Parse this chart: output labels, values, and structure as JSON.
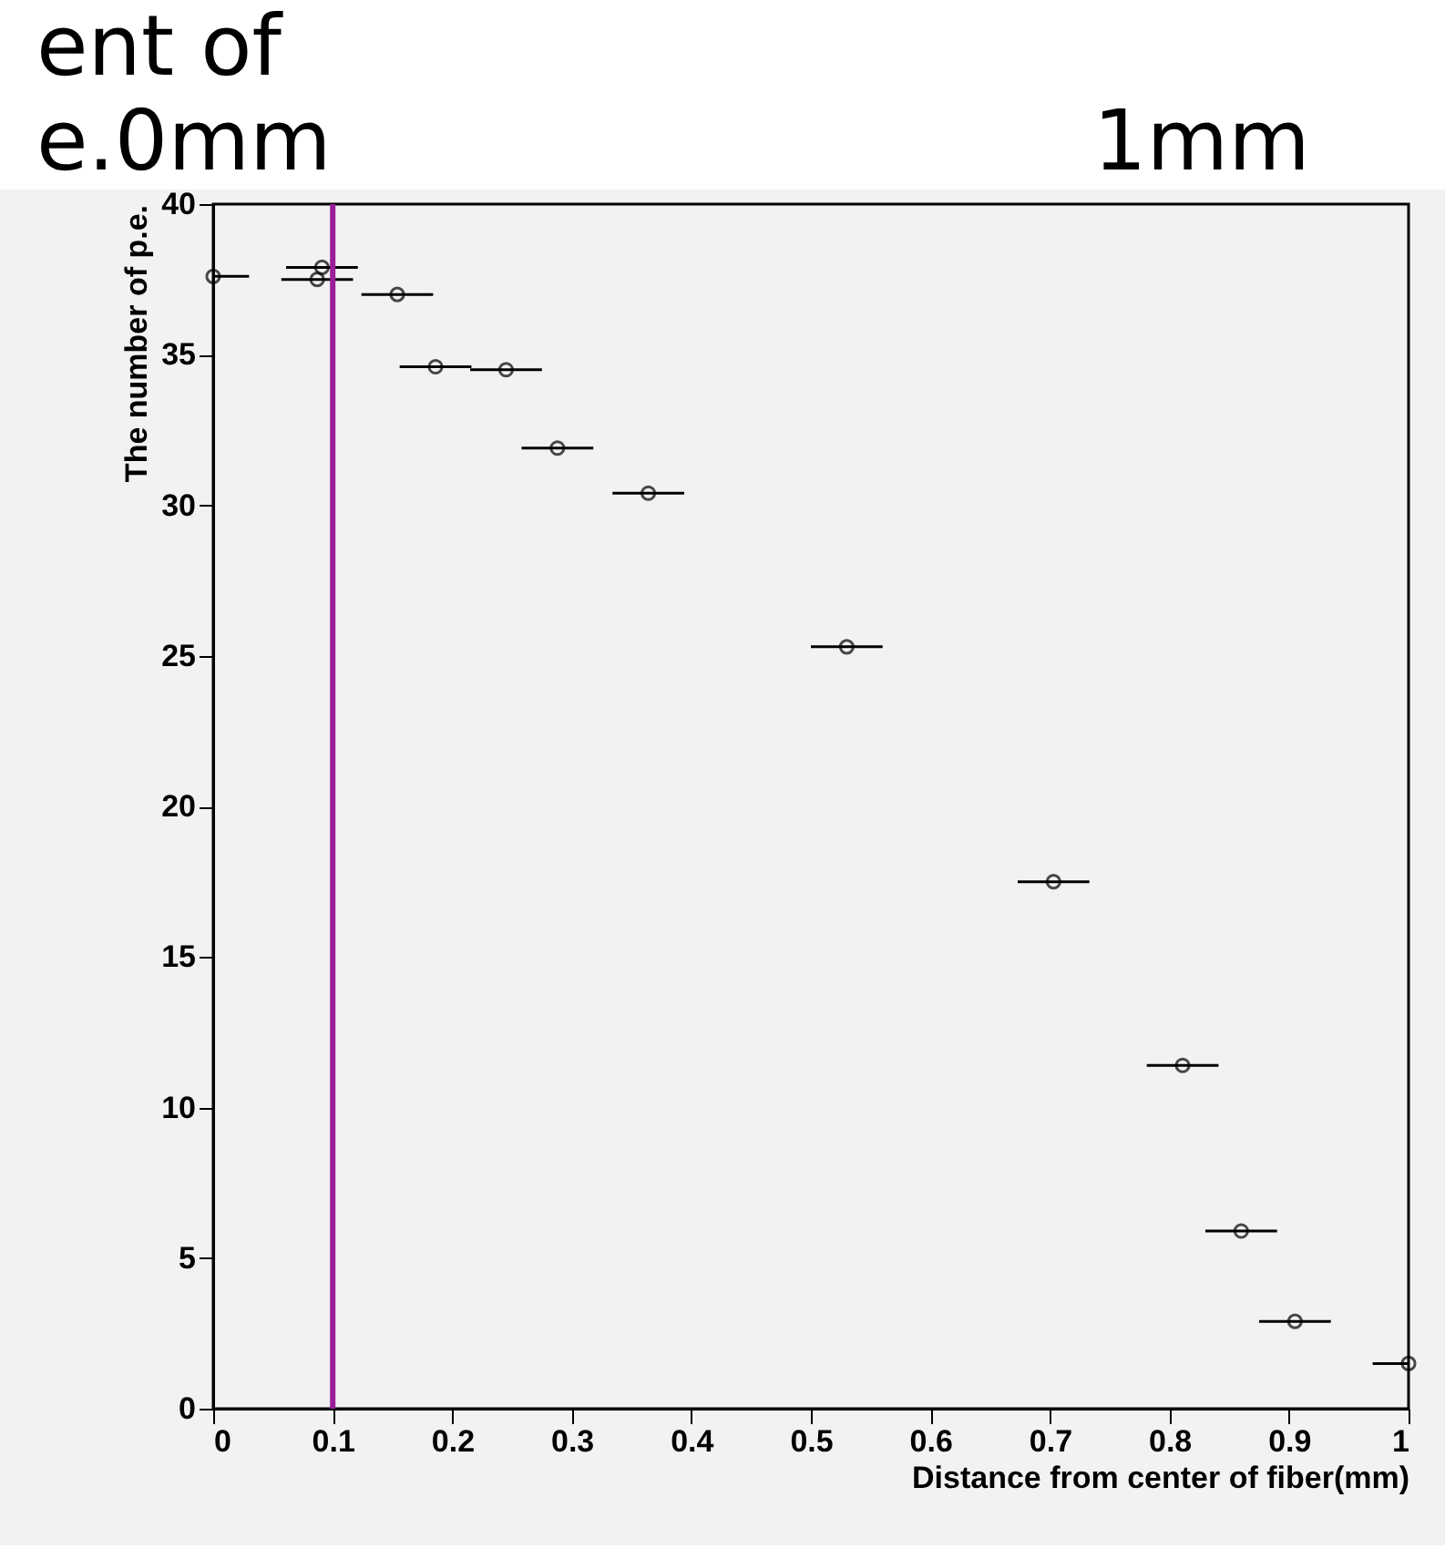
{
  "chart_data": {
    "type": "scatter",
    "xlabel": "Distance from center of fiber(mm)",
    "ylabel": "The number of p.e.",
    "annotations": [
      "ent of",
      "e.0mm",
      "1mm"
    ],
    "x": [
      0,
      0.091,
      0.087,
      0.154,
      0.186,
      0.245,
      0.288,
      0.364,
      0.53,
      0.703,
      0.811,
      0.86,
      0.905,
      1.0
    ],
    "series": [
      {
        "color": "#000000",
        "values": [
          37.6,
          37.9,
          37.5,
          37.0,
          34.6,
          34.5,
          31.9,
          30.4,
          25.3,
          17.5,
          11.4,
          5.9,
          2.9,
          1.5
        ],
        "xerrors": [
          [
            0,
            0.03
          ],
          0.03,
          0.03,
          0.03,
          0.03,
          0.03,
          0.03,
          0.03,
          0.03,
          0.03,
          0.03,
          0.03,
          0.03,
          [
            0.97,
            1
          ]
        ]
      }
    ],
    "xlim": [
      0,
      1
    ],
    "xticks": [
      0,
      0.1,
      0.2,
      0.3,
      0.4,
      0.5,
      0.6,
      0.7,
      0.8,
      0.9,
      1
    ],
    "ylim": [
      0,
      40
    ],
    "yticks": [
      0,
      5,
      10,
      15,
      20,
      25,
      30,
      35,
      40
    ],
    "ref_lines": [
      {
        "axis": "x",
        "value": 0.1,
        "color": "#9b1f9b"
      }
    ],
    "marker": "circle",
    "grid": false
  }
}
